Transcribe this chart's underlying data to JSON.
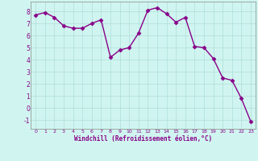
{
  "x": [
    0,
    1,
    2,
    3,
    4,
    5,
    6,
    7,
    8,
    9,
    10,
    11,
    12,
    13,
    14,
    15,
    16,
    17,
    18,
    19,
    20,
    21,
    22,
    23
  ],
  "y": [
    7.7,
    7.9,
    7.5,
    6.8,
    6.6,
    6.6,
    7.0,
    7.3,
    4.2,
    4.8,
    5.0,
    6.2,
    8.1,
    8.3,
    7.8,
    7.1,
    7.5,
    5.1,
    5.0,
    4.1,
    2.5,
    2.3,
    0.8,
    -1.1
  ],
  "line_color": "#880088",
  "marker": "D",
  "markersize": 2.5,
  "linewidth": 1.0,
  "background_color": "#d0f5f0",
  "grid_color": "#b0ddd8",
  "xlabel": "Windchill (Refroidissement éolien,°C)",
  "xlim": [
    -0.5,
    23.5
  ],
  "ylim": [
    -1.7,
    8.8
  ],
  "yticks": [
    -1,
    0,
    1,
    2,
    3,
    4,
    5,
    6,
    7,
    8
  ],
  "xticks": [
    0,
    1,
    2,
    3,
    4,
    5,
    6,
    7,
    8,
    9,
    10,
    11,
    12,
    13,
    14,
    15,
    16,
    17,
    18,
    19,
    20,
    21,
    22,
    23
  ]
}
